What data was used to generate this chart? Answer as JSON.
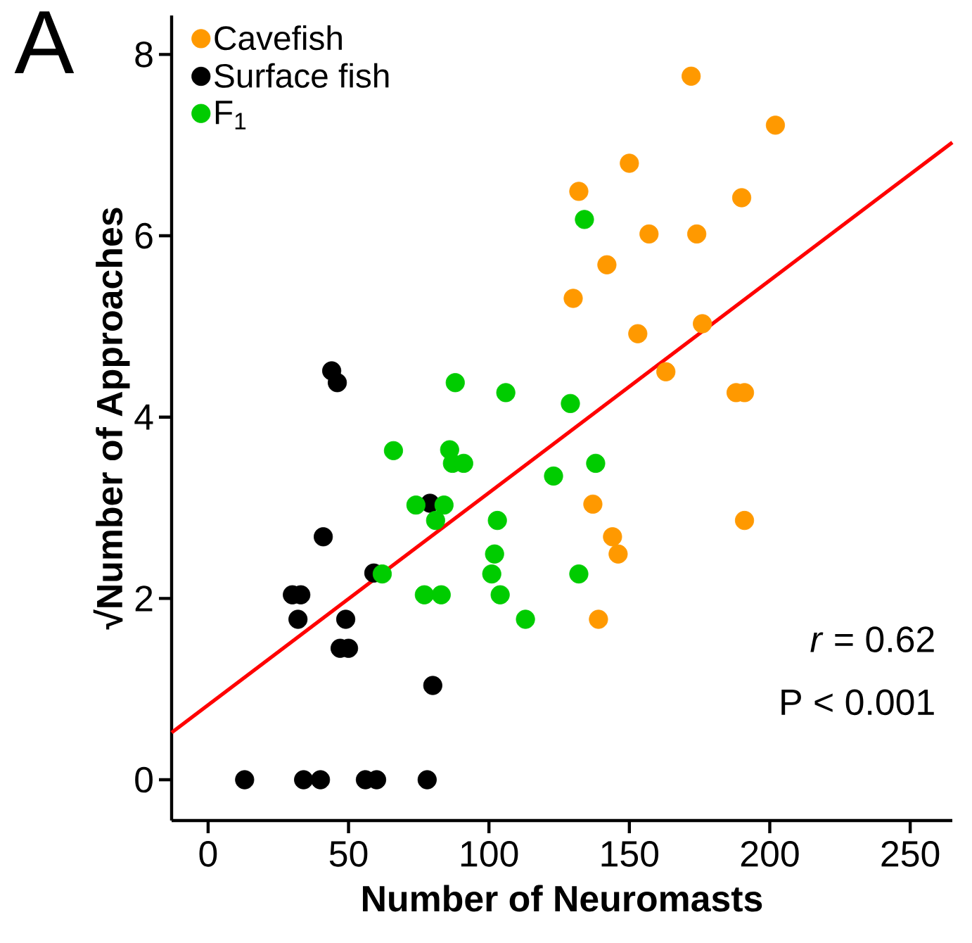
{
  "chart_data": {
    "type": "scatter",
    "title": "A",
    "xlabel": "Number of Neuromasts",
    "ylabel": "√Number of Approaches",
    "xlim": [
      -13,
      265
    ],
    "ylim": [
      -0.45,
      8.43
    ],
    "xticks": [
      0,
      50,
      100,
      150,
      200,
      250
    ],
    "yticks": [
      0,
      2,
      4,
      6,
      8
    ],
    "legend": "top left",
    "grid": false,
    "annotations": [
      "*r* = 0.62",
      "P < 0.001"
    ],
    "series": [
      {
        "name": "Cavefish",
        "color": "#ff9900",
        "marker": "circle",
        "x": [
          172,
          202,
          150,
          132,
          190,
          157,
          174,
          142,
          130,
          153,
          176,
          163,
          188,
          191,
          137,
          191,
          144,
          146,
          139
        ],
        "values": [
          7.76,
          7.22,
          6.8,
          6.49,
          6.42,
          6.02,
          6.02,
          5.68,
          5.31,
          4.92,
          5.03,
          4.5,
          4.27,
          4.27,
          3.04,
          2.86,
          2.68,
          2.49,
          1.77
        ]
      },
      {
        "name": "Surface fish",
        "color": "#000000",
        "marker": "circle",
        "x": [
          79,
          41,
          59,
          30,
          33,
          32,
          49,
          47,
          50,
          80,
          13,
          34,
          40,
          56,
          60,
          78,
          44,
          46
        ],
        "values": [
          3.05,
          2.68,
          2.28,
          2.04,
          2.04,
          1.77,
          1.77,
          1.45,
          1.45,
          1.04,
          0,
          0,
          0,
          0,
          0,
          0,
          4.51,
          4.38
        ]
      },
      {
        "name": "F$_{1}$",
        "color": "#00cc00",
        "marker": "circle",
        "x": [
          88,
          106,
          129,
          134,
          123,
          138,
          132,
          66,
          86,
          87,
          91,
          74,
          84,
          81,
          103,
          102,
          101,
          62,
          77,
          83,
          104,
          113
        ],
        "values": [
          4.38,
          4.27,
          4.15,
          6.18,
          3.35,
          3.49,
          2.27,
          3.63,
          3.64,
          3.49,
          3.49,
          3.03,
          3.03,
          2.86,
          2.86,
          2.49,
          2.27,
          2.27,
          2.04,
          2.04,
          2.04,
          1.77
        ]
      },
      {
        "type": "line",
        "color": "#ff0000",
        "marker": "none",
        "x": [
          -13,
          265
        ],
        "values": [
          0.52,
          7.03
        ]
      }
    ]
  }
}
